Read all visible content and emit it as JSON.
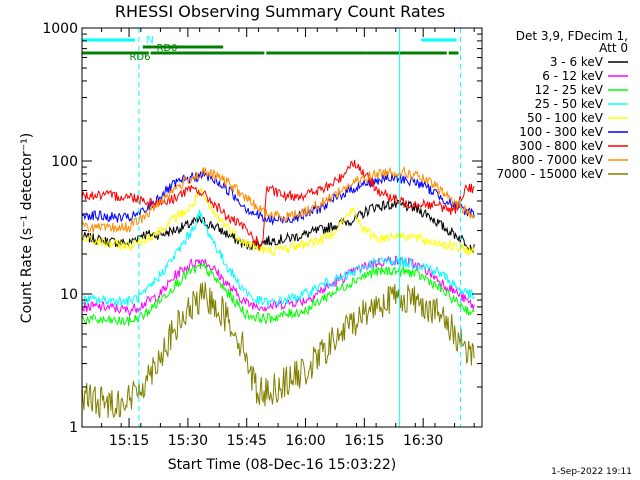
{
  "chart_data": {
    "type": "line",
    "title": "RHESSI Observing Summary Count Rates",
    "xlabel": "Start Time (08-Dec-16 15:03:22)",
    "ylabel": "Count Rate (s⁻¹ detector⁻¹)",
    "yscale": "log",
    "ylim": [
      1,
      1000
    ],
    "xlim_minutes": [
      0,
      102
    ],
    "x_ticks": [
      {
        "t": 12,
        "label": "15:15"
      },
      {
        "t": 27,
        "label": "15:30"
      },
      {
        "t": 42,
        "label": "15:45"
      },
      {
        "t": 57,
        "label": "16:00"
      },
      {
        "t": 72,
        "label": "16:15"
      },
      {
        "t": 87,
        "label": "16:30"
      }
    ],
    "y_ticks": [
      {
        "v": 1,
        "label": "1"
      },
      {
        "v": 10,
        "label": "10"
      },
      {
        "v": 100,
        "label": "100"
      },
      {
        "v": 1000,
        "label": "1000"
      }
    ],
    "legend_header": [
      "Det 3,9, FDecim 1,",
      "Att 0"
    ],
    "series": [
      {
        "name": "3 - 6 keV",
        "color": "#000000",
        "points": [
          [
            0,
            27
          ],
          [
            6,
            25
          ],
          [
            12,
            24
          ],
          [
            15,
            28
          ],
          [
            20,
            28
          ],
          [
            26,
            32
          ],
          [
            30,
            36
          ],
          [
            34,
            32
          ],
          [
            38,
            27
          ],
          [
            42,
            23
          ],
          [
            47,
            25
          ],
          [
            52,
            26
          ],
          [
            57,
            28
          ],
          [
            62,
            31
          ],
          [
            66,
            34
          ],
          [
            70,
            37
          ],
          [
            74,
            45
          ],
          [
            79,
            47
          ],
          [
            84,
            45
          ],
          [
            88,
            40
          ],
          [
            92,
            32
          ],
          [
            96,
            27
          ],
          [
            100,
            22
          ]
        ]
      },
      {
        "name": "6 - 12 keV",
        "color": "#ff00ff",
        "points": [
          [
            0,
            8
          ],
          [
            6,
            8
          ],
          [
            12,
            7.5
          ],
          [
            16,
            8.5
          ],
          [
            20,
            10
          ],
          [
            24,
            14
          ],
          [
            28,
            17
          ],
          [
            31,
            18
          ],
          [
            34,
            15
          ],
          [
            38,
            11
          ],
          [
            42,
            8.5
          ],
          [
            47,
            8
          ],
          [
            52,
            8.5
          ],
          [
            57,
            9
          ],
          [
            62,
            11
          ],
          [
            66,
            13
          ],
          [
            70,
            15
          ],
          [
            74,
            17
          ],
          [
            79,
            18
          ],
          [
            84,
            17
          ],
          [
            88,
            15
          ],
          [
            92,
            12
          ],
          [
            96,
            10
          ],
          [
            100,
            8
          ]
        ]
      },
      {
        "name": "12 - 25 keV",
        "color": "#00ff00",
        "points": [
          [
            0,
            6.5
          ],
          [
            6,
            6.3
          ],
          [
            12,
            6.2
          ],
          [
            16,
            7
          ],
          [
            20,
            9
          ],
          [
            24,
            12
          ],
          [
            28,
            15
          ],
          [
            31,
            16
          ],
          [
            34,
            13
          ],
          [
            38,
            9.5
          ],
          [
            42,
            7
          ],
          [
            47,
            6.5
          ],
          [
            52,
            7
          ],
          [
            57,
            7.5
          ],
          [
            62,
            9.5
          ],
          [
            66,
            11
          ],
          [
            70,
            13
          ],
          [
            74,
            14.5
          ],
          [
            79,
            15
          ],
          [
            84,
            14.5
          ],
          [
            88,
            13
          ],
          [
            92,
            10.5
          ],
          [
            96,
            8.5
          ],
          [
            100,
            7
          ]
        ]
      },
      {
        "name": "25 - 50 keV",
        "color": "#00ffff",
        "points": [
          [
            0,
            9
          ],
          [
            6,
            9
          ],
          [
            12,
            8.8
          ],
          [
            16,
            10
          ],
          [
            20,
            14
          ],
          [
            24,
            20
          ],
          [
            28,
            30
          ],
          [
            30,
            40
          ],
          [
            32,
            30
          ],
          [
            36,
            18
          ],
          [
            40,
            12
          ],
          [
            44,
            9
          ],
          [
            48,
            8.5
          ],
          [
            52,
            9
          ],
          [
            57,
            10
          ],
          [
            62,
            12
          ],
          [
            66,
            13
          ],
          [
            70,
            15
          ],
          [
            74,
            17
          ],
          [
            79,
            18
          ],
          [
            84,
            17
          ],
          [
            88,
            16
          ],
          [
            92,
            14
          ],
          [
            96,
            11
          ],
          [
            100,
            9.5
          ]
        ]
      },
      {
        "name": "50 - 100 keV",
        "color": "#ffff00",
        "points": [
          [
            0,
            26
          ],
          [
            6,
            24
          ],
          [
            12,
            23
          ],
          [
            15,
            25
          ],
          [
            20,
            30
          ],
          [
            24,
            38
          ],
          [
            28,
            45
          ],
          [
            30,
            60
          ],
          [
            33,
            42
          ],
          [
            38,
            30
          ],
          [
            42,
            24
          ],
          [
            47,
            21
          ],
          [
            52,
            22
          ],
          [
            57,
            24
          ],
          [
            62,
            26
          ],
          [
            66,
            34
          ],
          [
            69,
            43
          ],
          [
            72,
            30
          ],
          [
            76,
            26
          ],
          [
            80,
            28
          ],
          [
            84,
            27
          ],
          [
            88,
            25
          ],
          [
            92,
            24
          ],
          [
            96,
            22
          ],
          [
            100,
            21
          ]
        ]
      },
      {
        "name": "100 - 300 keV",
        "color": "#0000ff",
        "points": [
          [
            0,
            40
          ],
          [
            6,
            38
          ],
          [
            12,
            37
          ],
          [
            16,
            42
          ],
          [
            20,
            55
          ],
          [
            24,
            68
          ],
          [
            28,
            75
          ],
          [
            31,
            78
          ],
          [
            34,
            72
          ],
          [
            38,
            58
          ],
          [
            42,
            44
          ],
          [
            47,
            36
          ],
          [
            52,
            36
          ],
          [
            57,
            40
          ],
          [
            62,
            46
          ],
          [
            66,
            56
          ],
          [
            70,
            64
          ],
          [
            74,
            70
          ],
          [
            78,
            74
          ],
          [
            82,
            73
          ],
          [
            86,
            68
          ],
          [
            90,
            58
          ],
          [
            94,
            48
          ],
          [
            98,
            42
          ],
          [
            100,
            40
          ]
        ]
      },
      {
        "name": "300 - 800 keV",
        "color": "#ff0000",
        "points": [
          [
            0,
            55
          ],
          [
            6,
            55
          ],
          [
            12,
            54
          ],
          [
            15,
            52
          ],
          [
            18,
            48
          ],
          [
            22,
            50
          ],
          [
            26,
            58
          ],
          [
            29,
            62
          ],
          [
            33,
            50
          ],
          [
            37,
            38
          ],
          [
            41,
            32
          ],
          [
            44,
            26
          ],
          [
            46,
            22
          ],
          [
            47,
            62
          ],
          [
            52,
            54
          ],
          [
            57,
            56
          ],
          [
            62,
            62
          ],
          [
            66,
            75
          ],
          [
            69,
            100
          ],
          [
            72,
            80
          ],
          [
            75,
            62
          ],
          [
            79,
            52
          ],
          [
            83,
            48
          ],
          [
            87,
            48
          ],
          [
            91,
            46
          ],
          [
            95,
            42
          ],
          [
            98,
            64
          ],
          [
            100,
            62
          ]
        ]
      },
      {
        "name": "800 - 7000 keV",
        "color": "#ff8c00",
        "points": [
          [
            0,
            32
          ],
          [
            6,
            31
          ],
          [
            12,
            32
          ],
          [
            16,
            38
          ],
          [
            20,
            50
          ],
          [
            24,
            63
          ],
          [
            28,
            75
          ],
          [
            31,
            82
          ],
          [
            34,
            78
          ],
          [
            38,
            66
          ],
          [
            42,
            52
          ],
          [
            47,
            40
          ],
          [
            52,
            38
          ],
          [
            57,
            42
          ],
          [
            62,
            50
          ],
          [
            66,
            60
          ],
          [
            70,
            70
          ],
          [
            74,
            78
          ],
          [
            78,
            83
          ],
          [
            82,
            82
          ],
          [
            86,
            76
          ],
          [
            90,
            65
          ],
          [
            94,
            52
          ],
          [
            98,
            42
          ],
          [
            100,
            38
          ]
        ]
      },
      {
        "name": "7000 - 15000 keV",
        "color": "#808000",
        "points": [
          [
            0,
            1.7
          ],
          [
            6,
            1.5
          ],
          [
            12,
            1.6
          ],
          [
            16,
            2.2
          ],
          [
            20,
            3.5
          ],
          [
            24,
            5.5
          ],
          [
            28,
            8
          ],
          [
            31,
            9.5
          ],
          [
            34,
            8.5
          ],
          [
            38,
            6
          ],
          [
            42,
            3.5
          ],
          [
            44,
            2
          ],
          [
            47,
            1.8
          ],
          [
            52,
            2.2
          ],
          [
            57,
            2.6
          ],
          [
            62,
            3.8
          ],
          [
            66,
            5
          ],
          [
            70,
            6.5
          ],
          [
            74,
            8
          ],
          [
            78,
            9.2
          ],
          [
            82,
            9.5
          ],
          [
            86,
            8.8
          ],
          [
            90,
            7.5
          ],
          [
            94,
            5.5
          ],
          [
            98,
            4
          ],
          [
            100,
            3.5
          ]
        ]
      }
    ],
    "status_flags": [
      {
        "label": "N",
        "color": "#00ffff",
        "segments": [
          [
            0,
            13.5
          ],
          [
            86.5,
            95.5
          ]
        ]
      },
      {
        "label": "RD0",
        "color": "#008000",
        "segments": [
          [
            15.5,
            36
          ]
        ]
      },
      {
        "label": "RD6",
        "color": "#008000",
        "segments": [
          [
            0,
            17
          ],
          [
            17.5,
            46.5
          ],
          [
            47,
            72.5
          ],
          [
            72.5,
            93
          ],
          [
            93.5,
            96
          ]
        ]
      }
    ],
    "markers": [
      {
        "t": 0,
        "style": "solid"
      },
      {
        "t": 14.5,
        "style": "dashed"
      },
      {
        "t": 81,
        "style": "solid"
      },
      {
        "t": 96.5,
        "style": "dashed"
      }
    ],
    "footer_timestamp": "1-Sep-2022 19:11"
  }
}
